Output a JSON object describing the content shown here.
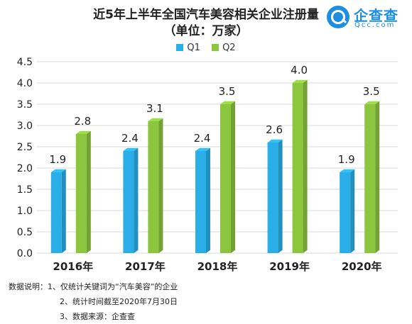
{
  "header": {
    "title_line1": "近5年上半年全国汽车美容相关企业注册量",
    "title_line2": "（单位：万家）"
  },
  "logo": {
    "name": "企查查",
    "domain": "Qcc.com"
  },
  "chart_data": {
    "type": "bar",
    "categories": [
      "2016年",
      "2017年",
      "2018年",
      "2019年",
      "2020年"
    ],
    "series": [
      {
        "name": "Q1",
        "values": [
          1.9,
          2.4,
          2.4,
          2.6,
          1.9
        ],
        "color": "#29aee8"
      },
      {
        "name": "Q2",
        "values": [
          2.8,
          3.1,
          3.5,
          4.0,
          3.5
        ],
        "color": "#8cc63f"
      }
    ],
    "data_labels": [
      [
        "1.9",
        "2.4",
        "2.4",
        "2.6",
        "1.9"
      ],
      [
        "2.8",
        "3.1",
        "3.5",
        "4.0",
        "3.5"
      ]
    ],
    "yticks": [
      "0.0",
      "0.5",
      "1.0",
      "1.5",
      "2.0",
      "2.5",
      "3.0",
      "3.5",
      "4.0",
      "4.5"
    ],
    "ylim": [
      0,
      4.5
    ],
    "legend": "top-center",
    "grid": true
  },
  "notes": {
    "line1": "数据说明：1、仅统计关键词为“汽车美容”的企业",
    "line2": "2、统计时间截至2020年7月30日",
    "line3": "3、数据来源：企查查"
  }
}
